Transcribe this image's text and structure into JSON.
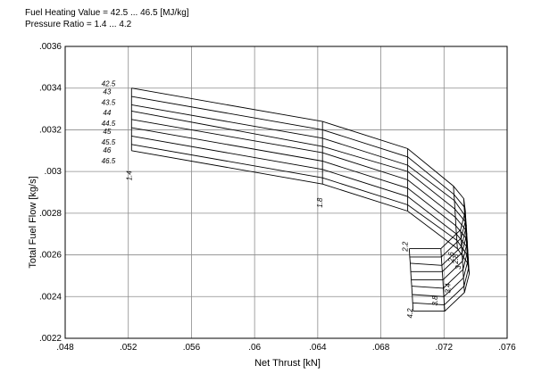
{
  "header": {
    "line1": "Fuel Heating Value = 42.5 ... 46.5 [MJ/kg]",
    "line2": "Pressure Ratio = 1.4 ... 4.2"
  },
  "chart_data": {
    "type": "line",
    "subtype": "carpet",
    "xlabel": "Net Thrust [kN]",
    "ylabel": "Total Fuel Flow [kg/s]",
    "xlim": [
      0.048,
      0.076
    ],
    "ylim": [
      0.0022,
      0.0036
    ],
    "xticks": [
      0.048,
      0.052,
      0.056,
      0.06,
      0.064,
      0.068,
      0.072,
      0.076
    ],
    "xtick_labels": [
      ".048",
      ".052",
      ".056",
      ".06",
      ".064",
      ".068",
      ".072",
      ".076"
    ],
    "yticks": [
      0.0022,
      0.0024,
      0.0026,
      0.0028,
      0.003,
      0.0032,
      0.0034,
      0.0036
    ],
    "ytick_labels": [
      ".0022",
      ".0024",
      ".0026",
      ".0028",
      ".003",
      ".0032",
      ".0034",
      ".0036"
    ],
    "grid": true,
    "fuel_heating_values": [
      "42.5",
      "43",
      "43.5",
      "44",
      "44.5",
      "45",
      "45.5",
      "46",
      "46.5"
    ],
    "pressure_ratio_labels": [
      "1.4",
      "1.8",
      "2.2",
      "2.6",
      "2.8",
      "3",
      "3.4",
      "3.8",
      "4.2"
    ],
    "pressure_ratio_label_points": [
      {
        "x": 0.0522,
        "y": 0.00298
      },
      {
        "x": 0.0643,
        "y": 0.00285
      },
      {
        "x": 0.0697,
        "y": 0.00264
      },
      {
        "x": 0.0726,
        "y": 0.00259
      },
      {
        "x": 0.0729,
        "y": 0.00258
      },
      {
        "x": 0.07305,
        "y": 0.00254
      },
      {
        "x": 0.0724,
        "y": 0.00244
      },
      {
        "x": 0.0716,
        "y": 0.00238
      },
      {
        "x": 0.07,
        "y": 0.00232
      }
    ],
    "fhv_label_points": [
      {
        "x": 0.0503,
        "y": 0.00341
      },
      {
        "x": 0.0504,
        "y": 0.00337
      },
      {
        "x": 0.0503,
        "y": 0.00332
      },
      {
        "x": 0.0504,
        "y": 0.00327
      },
      {
        "x": 0.0503,
        "y": 0.00322
      },
      {
        "x": 0.0504,
        "y": 0.00318
      },
      {
        "x": 0.0503,
        "y": 0.00313
      },
      {
        "x": 0.0504,
        "y": 0.00309
      },
      {
        "x": 0.0503,
        "y": 0.00304
      }
    ],
    "pressure_ratio_x": [
      0.0522,
      0.0643,
      0.0697,
      0.0726,
      0.07325,
      0.07335,
      0.07305,
      0.0718,
      0.0698
    ],
    "fhv_y_offsets": [
      0,
      -3.8e-05,
      -7.6e-05,
      -0.000114,
      -0.000152,
      -0.00019,
      -0.000228,
      -0.000266,
      -0.000304
    ],
    "series": [
      {
        "name": "42.5",
        "values": [
          0.0034,
          0.00324,
          0.00311,
          0.00293,
          0.00287,
          0.00281,
          0.00272,
          0.00263,
          0.00263
        ]
      },
      {
        "name": "43",
        "values": [
          0.00336,
          0.0032,
          0.00307,
          0.00289,
          0.00283,
          0.00277,
          0.00268,
          0.00259,
          0.00259
        ]
      },
      {
        "name": "43.5",
        "values": [
          0.00332,
          0.00316,
          0.00303,
          0.00286,
          0.00279,
          0.00274,
          0.00264,
          0.00255,
          0.00256
        ]
      },
      {
        "name": "44",
        "values": [
          0.00329,
          0.00312,
          0.003,
          0.00282,
          0.00276,
          0.0027,
          0.00261,
          0.00252,
          0.00252
        ]
      },
      {
        "name": "44.5",
        "values": [
          0.00325,
          0.00309,
          0.00296,
          0.00278,
          0.00272,
          0.00266,
          0.00257,
          0.00248,
          0.00248
        ]
      },
      {
        "name": "45",
        "values": [
          0.00321,
          0.00305,
          0.00292,
          0.00274,
          0.00268,
          0.00262,
          0.00253,
          0.00244,
          0.00245
        ]
      },
      {
        "name": "45.5",
        "values": [
          0.00317,
          0.00301,
          0.00288,
          0.0027,
          0.00264,
          0.00258,
          0.00249,
          0.0024,
          0.00241
        ]
      },
      {
        "name": "46",
        "values": [
          0.00313,
          0.00297,
          0.00284,
          0.00267,
          0.0026,
          0.00254,
          0.00245,
          0.00236,
          0.00237
        ]
      },
      {
        "name": "46.5",
        "values": [
          0.0031,
          0.00294,
          0.00281,
          0.00263,
          0.00256,
          0.00251,
          0.00242,
          0.00233,
          0.00233
        ]
      }
    ]
  }
}
